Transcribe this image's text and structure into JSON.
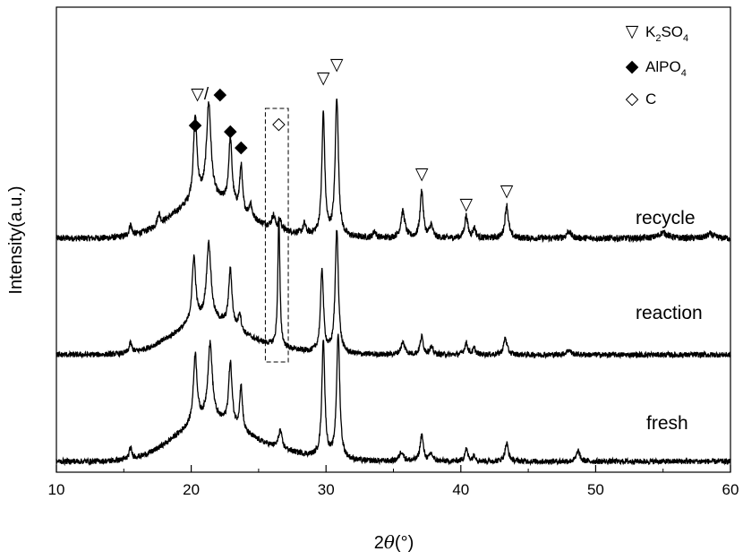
{
  "chart_data": {
    "type": "line",
    "title": "",
    "xlabel": {
      "prefix": "2",
      "theta": "θ",
      "suffix": "(°)"
    },
    "ylabel": "Intensity(a.u.)",
    "xlim": [
      10,
      60
    ],
    "xticks": [
      10,
      20,
      30,
      40,
      50,
      60
    ],
    "grid": false,
    "legend": {
      "placement": "top-right",
      "items": [
        {
          "symbol": "▽",
          "parts": [
            [
              "K",
              "n"
            ],
            [
              "2",
              "sub"
            ],
            [
              "SO",
              "n"
            ],
            [
              "4",
              "sub"
            ]
          ]
        },
        {
          "symbol": "◆",
          "parts": [
            [
              "AlPO",
              "n"
            ],
            [
              "4",
              "sub"
            ]
          ]
        },
        {
          "symbol": "◇",
          "parts": [
            [
              "C",
              "n"
            ]
          ]
        }
      ]
    },
    "series": [
      {
        "name": "recycle",
        "baseline": 0,
        "noise": 2.3,
        "peaks": [
          [
            15.5,
            8,
            0.12
          ],
          [
            17.6,
            8,
            0.12
          ],
          [
            20.3,
            60,
            0.16
          ],
          [
            21.3,
            68,
            0.2
          ],
          [
            22.9,
            48,
            0.15
          ],
          [
            23.7,
            33,
            0.12
          ],
          [
            24.4,
            10,
            0.12
          ],
          [
            26.1,
            9,
            0.15
          ],
          [
            26.6,
            7,
            0.1
          ],
          [
            28.4,
            7,
            0.12
          ],
          [
            29.8,
            88,
            0.13
          ],
          [
            30.8,
            100,
            0.14
          ],
          [
            33.6,
            5,
            0.12
          ],
          [
            35.7,
            19,
            0.18
          ],
          [
            37.1,
            34,
            0.14
          ],
          [
            37.8,
            9,
            0.14
          ],
          [
            40.4,
            16,
            0.14
          ],
          [
            41,
            7,
            0.12
          ],
          [
            43.4,
            24,
            0.15
          ],
          [
            48,
            5,
            0.2
          ],
          [
            55,
            4,
            0.4
          ],
          [
            58.5,
            3,
            0.3
          ]
        ],
        "humps": [
          [
            21,
            26,
            2.4
          ],
          [
            25,
            5,
            3.0
          ]
        ]
      },
      {
        "name": "reaction",
        "baseline": 0,
        "noise": 2.3,
        "peaks": [
          [
            15.5,
            8,
            0.12
          ],
          [
            20.2,
            55,
            0.16
          ],
          [
            21.3,
            65,
            0.2
          ],
          [
            22.9,
            48,
            0.15
          ],
          [
            23.6,
            15,
            0.12
          ],
          [
            26.5,
            110,
            0.09
          ],
          [
            29.7,
            70,
            0.13
          ],
          [
            30.8,
            103,
            0.14
          ],
          [
            35.7,
            10,
            0.18
          ],
          [
            37.1,
            15,
            0.14
          ],
          [
            37.8,
            6,
            0.14
          ],
          [
            40.4,
            10,
            0.14
          ],
          [
            41,
            5,
            0.12
          ],
          [
            43.3,
            14,
            0.15
          ],
          [
            48,
            4,
            0.2
          ]
        ],
        "humps": [
          [
            21,
            26,
            2.4
          ],
          [
            25,
            5,
            3.0
          ]
        ]
      },
      {
        "name": "fresh",
        "baseline": 0,
        "noise": 2.3,
        "peaks": [
          [
            15.5,
            9,
            0.12
          ],
          [
            20.3,
            57,
            0.16
          ],
          [
            21.4,
            63,
            0.2
          ],
          [
            22.9,
            52,
            0.15
          ],
          [
            23.7,
            37,
            0.12
          ],
          [
            26.6,
            15,
            0.15
          ],
          [
            29.8,
            98,
            0.13
          ],
          [
            30.9,
            103,
            0.14
          ],
          [
            35.6,
            8,
            0.18
          ],
          [
            37.1,
            22,
            0.14
          ],
          [
            37.8,
            6,
            0.14
          ],
          [
            40.4,
            10,
            0.14
          ],
          [
            41,
            5,
            0.12
          ],
          [
            43.4,
            15,
            0.15
          ],
          [
            48.7,
            9,
            0.14
          ]
        ],
        "humps": [
          [
            21,
            29,
            2.4
          ],
          [
            25,
            10,
            3.0
          ]
        ]
      }
    ],
    "series_labels": [
      "recycle",
      "reaction",
      "fresh"
    ],
    "annotations": [
      {
        "name": "k2so4-peak-29-8",
        "text": "▽",
        "x": 29.8,
        "series": 0
      },
      {
        "name": "k2so4-peak-30-8",
        "text": "▽",
        "x": 30.8,
        "series": 0
      },
      {
        "name": "k2so4-peak-37-1",
        "text": "▽",
        "x": 37.1,
        "series": 0
      },
      {
        "name": "k2so4-peak-40-4",
        "text": "▽",
        "x": 40.4,
        "series": 0
      },
      {
        "name": "k2so4-peak-43-4",
        "text": "▽",
        "x": 43.4,
        "series": 0
      },
      {
        "name": "mixed-peak-21-3",
        "text": "▽/ ◆",
        "x": 21.3,
        "series": 0
      },
      {
        "name": "alpo4-peak-20-3",
        "text": "◆",
        "x": 20.3,
        "series": 0
      },
      {
        "name": "alpo4-peak-22-9",
        "text": "◆",
        "x": 22.9,
        "series": 0
      },
      {
        "name": "alpo4-peak-23-7",
        "text": "◆",
        "x": 23.7,
        "series": 0
      },
      {
        "name": "carbon-peak-26-5",
        "text": "◇",
        "x": 26.5,
        "series": 0
      }
    ],
    "highlight_box": {
      "x_range": [
        25.5,
        27.2
      ]
    }
  }
}
